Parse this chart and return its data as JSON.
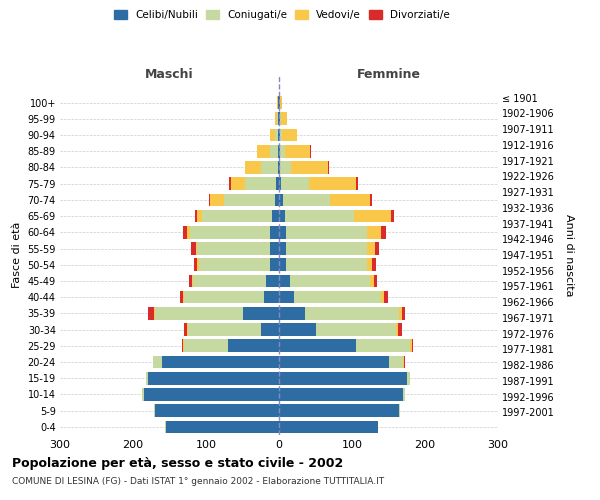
{
  "age_groups": [
    "0-4",
    "5-9",
    "10-14",
    "15-19",
    "20-24",
    "25-29",
    "30-34",
    "35-39",
    "40-44",
    "45-49",
    "50-54",
    "55-59",
    "60-64",
    "65-69",
    "70-74",
    "75-79",
    "80-84",
    "85-89",
    "90-94",
    "95-99",
    "100+"
  ],
  "birth_years": [
    "1997-2001",
    "1992-1996",
    "1987-1991",
    "1982-1986",
    "1977-1981",
    "1972-1976",
    "1967-1971",
    "1962-1966",
    "1957-1961",
    "1952-1956",
    "1947-1951",
    "1942-1946",
    "1937-1941",
    "1932-1936",
    "1927-1931",
    "1922-1926",
    "1917-1921",
    "1912-1916",
    "1907-1911",
    "1902-1906",
    "≤ 1901"
  ],
  "colors": {
    "celibe": "#2E6DA4",
    "coniugato": "#C5D9A0",
    "vedovo": "#F9C84A",
    "divorziato": "#D92B2B"
  },
  "maschi": {
    "celibe": [
      155,
      170,
      185,
      180,
      160,
      70,
      25,
      50,
      20,
      18,
      12,
      12,
      12,
      10,
      6,
      4,
      2,
      2,
      1,
      1,
      1
    ],
    "coniugato": [
      1,
      1,
      2,
      2,
      12,
      60,
      100,
      120,
      110,
      100,
      98,
      100,
      110,
      95,
      70,
      42,
      22,
      10,
      4,
      2,
      1
    ],
    "vedovo": [
      0,
      0,
      0,
      0,
      1,
      1,
      1,
      1,
      1,
      1,
      2,
      2,
      4,
      8,
      18,
      20,
      22,
      18,
      8,
      3,
      1
    ],
    "divorziato": [
      0,
      0,
      0,
      0,
      0,
      2,
      4,
      8,
      4,
      4,
      5,
      6,
      6,
      2,
      2,
      2,
      1,
      0,
      0,
      0,
      0
    ]
  },
  "femmine": {
    "nubile": [
      135,
      165,
      170,
      175,
      150,
      105,
      50,
      35,
      20,
      15,
      10,
      10,
      10,
      8,
      5,
      3,
      2,
      2,
      1,
      1,
      1
    ],
    "coniugata": [
      1,
      1,
      2,
      4,
      20,
      75,
      110,
      130,
      120,
      110,
      110,
      110,
      110,
      95,
      65,
      38,
      15,
      6,
      3,
      2,
      1
    ],
    "vedova": [
      0,
      0,
      0,
      0,
      1,
      2,
      3,
      3,
      4,
      5,
      8,
      12,
      20,
      50,
      55,
      65,
      50,
      35,
      20,
      8,
      2
    ],
    "divorziata": [
      0,
      0,
      0,
      0,
      1,
      2,
      5,
      5,
      5,
      4,
      5,
      5,
      7,
      4,
      2,
      2,
      1,
      1,
      0,
      0,
      0
    ]
  },
  "title": "Popolazione per età, sesso e stato civile - 2002",
  "subtitle": "COMUNE DI LESINA (FG) - Dati ISTAT 1° gennaio 2002 - Elaborazione TUTTITALIA.IT",
  "xlabel_left": "Maschi",
  "xlabel_right": "Femmine",
  "ylabel_left": "Fasce di età",
  "ylabel_right": "Anni di nascita",
  "xlim": 300,
  "background_color": "#ffffff",
  "grid_color": "#cccccc"
}
